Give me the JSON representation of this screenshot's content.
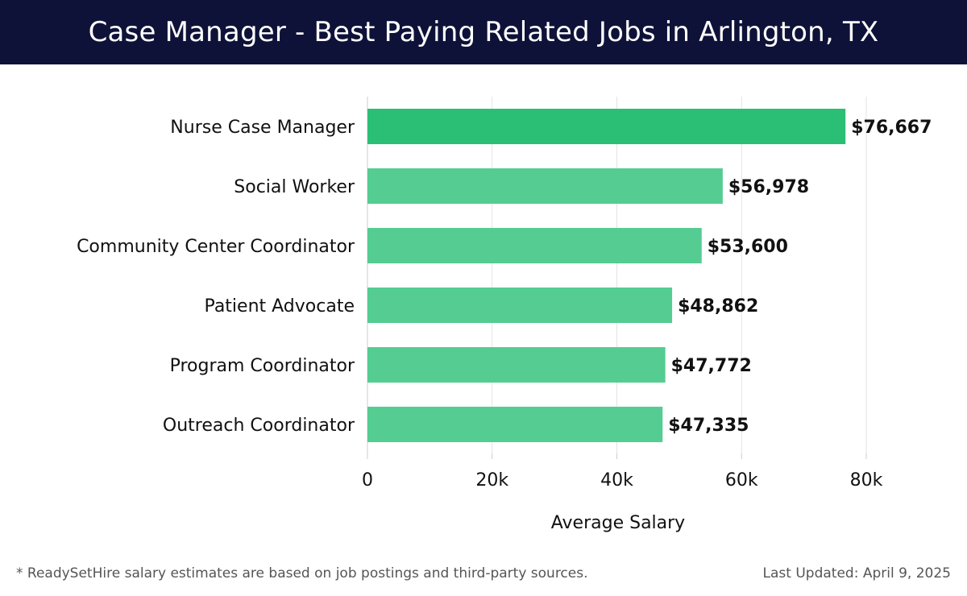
{
  "header": {
    "title": "Case Manager - Best Paying Related Jobs in Arlington, TX"
  },
  "chart_data": {
    "type": "bar",
    "orientation": "horizontal",
    "categories": [
      "Nurse Case Manager",
      "Social Worker",
      "Community Center Coordinator",
      "Patient Advocate",
      "Program Coordinator",
      "Outreach Coordinator"
    ],
    "values": [
      76667,
      56978,
      53600,
      48862,
      47772,
      47335
    ],
    "value_labels": [
      "$76,667",
      "$56,978",
      "$53,600",
      "$48,862",
      "$47,772",
      "$47,335"
    ],
    "xlabel": "Average Salary",
    "xlim": [
      0,
      80000
    ],
    "xticks": [
      0,
      20000,
      40000,
      60000,
      80000
    ],
    "xtick_labels": [
      "0",
      "20k",
      "40k",
      "60k",
      "80k"
    ],
    "grid": true,
    "colors": {
      "top_bar": "#2bbf76",
      "bar": "#55cc92",
      "grid": "#e3e3e3",
      "axis": "#cccccc"
    }
  },
  "footer": {
    "note": "* ReadySetHire salary estimates are based on job postings and third-party sources.",
    "updated": "Last Updated: April 9, 2025"
  }
}
